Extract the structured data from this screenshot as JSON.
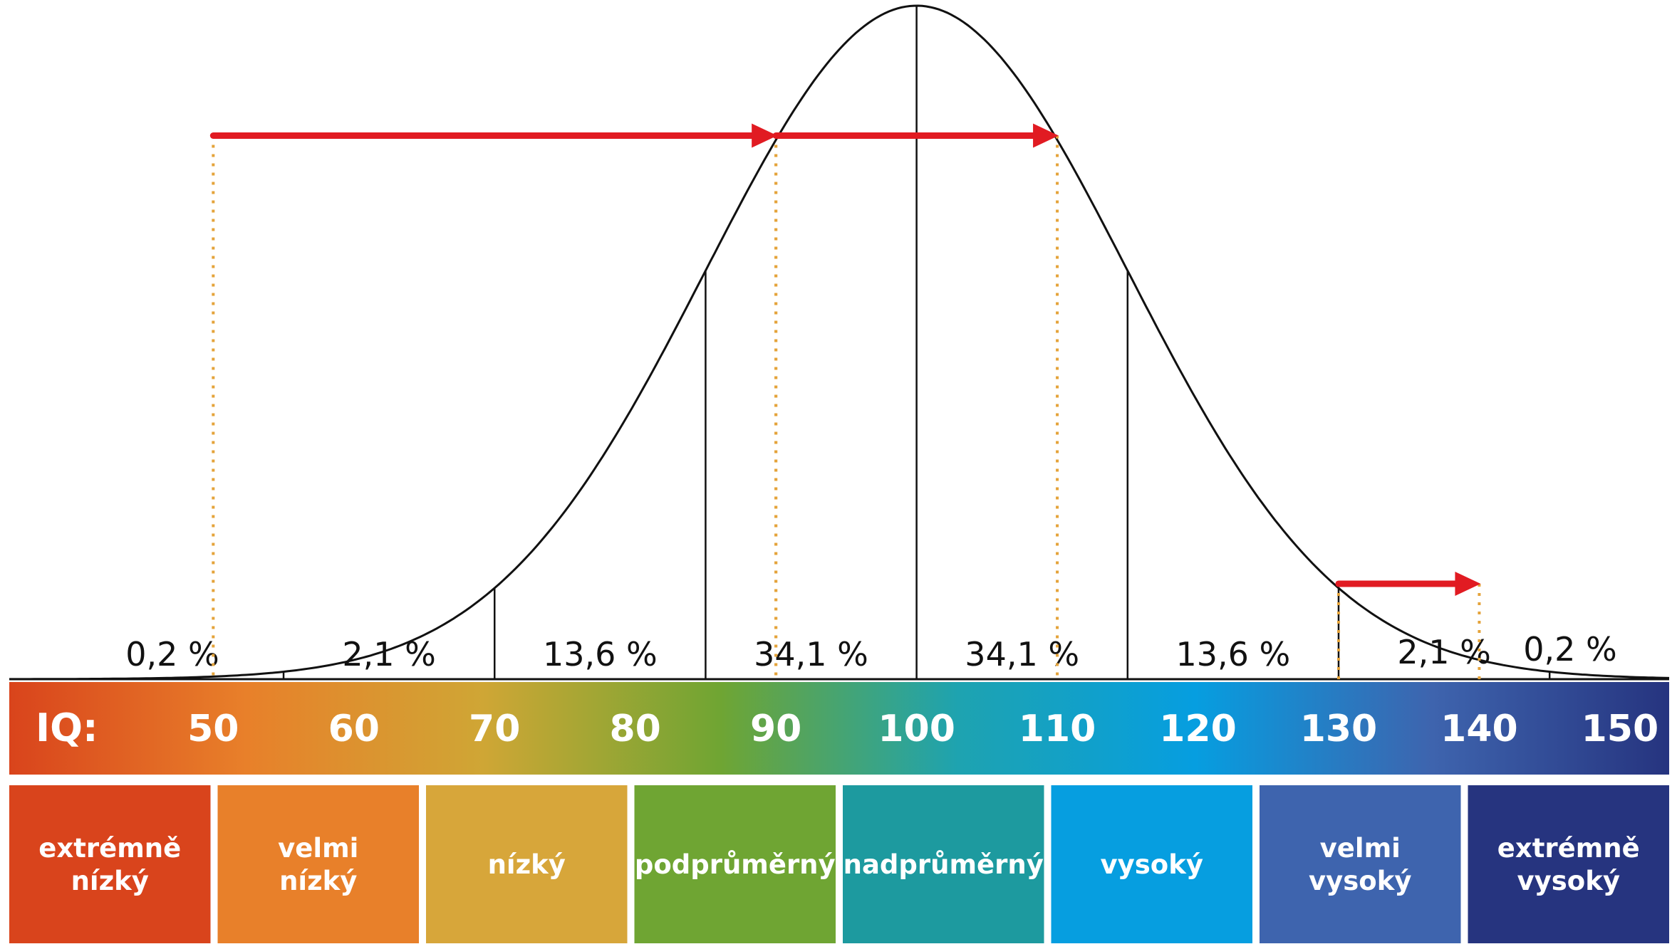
{
  "chart_data": {
    "type": "area",
    "xlim": [
      35.5,
      153.5
    ],
    "distribution": {
      "mean": 100,
      "sd": 15
    },
    "axis_label": "IQ:",
    "ticks": [
      50,
      60,
      70,
      80,
      90,
      100,
      110,
      120,
      130,
      140,
      150
    ],
    "sd_boundaries": [
      40,
      55,
      70,
      85,
      100,
      115,
      130,
      145,
      160
    ],
    "segment_percentages": [
      {
        "center": 47.5,
        "label": "0,2 %"
      },
      {
        "center": 62.5,
        "label": "2,1 %"
      },
      {
        "center": 77.5,
        "label": "13,6 %"
      },
      {
        "center": 92.5,
        "label": "34,1 %"
      },
      {
        "center": 107.5,
        "label": "34,1 %"
      },
      {
        "center": 122.5,
        "label": "13,6 %"
      },
      {
        "center": 137.5,
        "label": "2,1 %"
      },
      {
        "center": 152.5,
        "label": "0,2 %"
      }
    ],
    "arrows": [
      {
        "from": 50,
        "to": 90
      },
      {
        "from": 90,
        "to": 110
      },
      {
        "from": 130,
        "to": 140
      }
    ],
    "categories": [
      {
        "lines": [
          "extrémně",
          "nízký"
        ],
        "color": "#d9441c"
      },
      {
        "lines": [
          "velmi",
          "nízký"
        ],
        "color": "#e8802a"
      },
      {
        "lines": [
          "nízký"
        ],
        "color": "#d7a63a"
      },
      {
        "lines": [
          "podprůměrný"
        ],
        "color": "#6fa533"
      },
      {
        "lines": [
          "nadprůměrný"
        ],
        "color": "#1d9a9f"
      },
      {
        "lines": [
          "vysoký"
        ],
        "color": "#069ee0"
      },
      {
        "lines": [
          "velmi",
          "vysoký"
        ],
        "color": "#3e64ae"
      },
      {
        "lines": [
          "extrémně",
          "vysoký"
        ],
        "color": "#26347f"
      }
    ],
    "bar_gradient": [
      "#d9441c",
      "#e8802a",
      "#cfa635",
      "#6fa533",
      "#1ea3b0",
      "#069ee0",
      "#3e64ae",
      "#26347f"
    ],
    "colors": {
      "curve": "#111111",
      "arrow": "#e11b22",
      "guide": "#e4a33a"
    }
  }
}
